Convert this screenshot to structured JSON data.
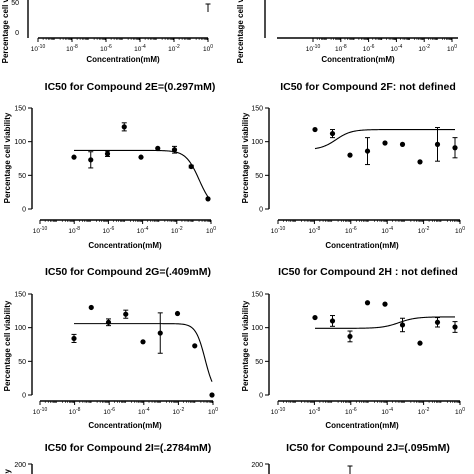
{
  "chart_data": [
    {
      "id": "2C",
      "type": "scatter",
      "title": "",
      "xlabel": "Concentration(mM)",
      "ylabel": "Percentage cell viability",
      "x_scale": "log10",
      "xlim": [
        1e-10,
        1
      ],
      "x_ticks": [
        -10,
        -8,
        -6,
        -4,
        -2,
        0
      ],
      "y_ticks": [
        "50",
        "0"
      ],
      "points": [
        {
          "x": 1,
          "y": 35,
          "err": 8
        }
      ]
    },
    {
      "id": "2D",
      "type": "scatter",
      "title": "",
      "xlabel": "Concentration(mM)",
      "ylabel": "Percentage cell viability",
      "x_scale": "log10",
      "xlim": [
        1e-10,
        1
      ],
      "x_ticks": [
        -10,
        -8,
        -6,
        -4,
        -2,
        0
      ],
      "y_ticks": [],
      "points": []
    },
    {
      "id": "2E",
      "type": "scatter",
      "title": "IC50 for Compound 2E=(0.297mM)",
      "xlabel": "Concentration(mM)",
      "ylabel": "Percentage cell viability",
      "x_scale": "log10",
      "xlim": [
        1e-10,
        1
      ],
      "ylim": [
        0,
        150
      ],
      "x_ticks": [
        -10,
        -8,
        -6,
        -4,
        -2,
        0
      ],
      "y_ticks": [
        "0",
        "50",
        "100",
        "150"
      ],
      "points": [
        {
          "x": -8,
          "y": 77
        },
        {
          "x": -7,
          "y": 73,
          "err": 12
        },
        {
          "x": -6,
          "y": 82,
          "err": 4
        },
        {
          "x": -5,
          "y": 122,
          "err": 6
        },
        {
          "x": -4,
          "y": 77
        },
        {
          "x": -3,
          "y": 90
        },
        {
          "x": -2,
          "y": 88,
          "err": 5
        },
        {
          "x": -1,
          "y": 63,
          "err": 2
        },
        {
          "x": 0,
          "y": 15
        }
      ],
      "curve": {
        "top": 87,
        "bottom": 0,
        "log_ic50": -0.53,
        "hill": 1.1
      }
    },
    {
      "id": "2F",
      "type": "scatter",
      "title": "IC50 for Compound 2F: not defined",
      "xlabel": "Concentration(mM)",
      "ylabel": "Percentage cell viability",
      "x_scale": "log10",
      "xlim": [
        1e-10,
        1
      ],
      "ylim": [
        0,
        150
      ],
      "x_ticks": [
        -10,
        -8,
        -6,
        -4,
        -2,
        0
      ],
      "y_ticks": [
        "0",
        "50",
        "100",
        "150"
      ],
      "points": [
        {
          "x": -8,
          "y": 118
        },
        {
          "x": -7,
          "y": 112,
          "err": 6
        },
        {
          "x": -6,
          "y": 80
        },
        {
          "x": -5,
          "y": 86,
          "err": 20
        },
        {
          "x": -4,
          "y": 98
        },
        {
          "x": -3,
          "y": 96
        },
        {
          "x": -2,
          "y": 70
        },
        {
          "x": -1,
          "y": 96,
          "err": 25
        },
        {
          "x": 0,
          "y": 91,
          "err": 15
        }
      ],
      "curve": {
        "top": 118,
        "bottom": 88,
        "log_ic50": -6.8,
        "hill": -1
      }
    },
    {
      "id": "2G",
      "type": "scatter",
      "title": "IC50 for Compound 2G=(.409mM)",
      "xlabel": "Concentration(mM)",
      "ylabel": "Percentage cell viability",
      "x_scale": "log10",
      "xlim": [
        1e-10,
        1
      ],
      "ylim": [
        0,
        150
      ],
      "x_ticks": [
        -10,
        -8,
        -6,
        -4,
        -2,
        0
      ],
      "y_ticks": [
        "0",
        "50",
        "100",
        "150"
      ],
      "points": [
        {
          "x": -8,
          "y": 84,
          "err": 6
        },
        {
          "x": -7,
          "y": 130
        },
        {
          "x": -6,
          "y": 108,
          "err": 5
        },
        {
          "x": -5,
          "y": 120,
          "err": 6
        },
        {
          "x": -4,
          "y": 79
        },
        {
          "x": -3,
          "y": 92,
          "err": 30
        },
        {
          "x": -2,
          "y": 121
        },
        {
          "x": -1,
          "y": 73
        },
        {
          "x": 0,
          "y": 0
        }
      ],
      "curve": {
        "top": 106,
        "bottom": 0,
        "log_ic50": -0.4,
        "hill": 1.6
      }
    },
    {
      "id": "2H",
      "type": "scatter",
      "title": "IC50 for Compound 2H : not defined",
      "xlabel": "Concentration(mM)",
      "ylabel": "Percentage cell viability",
      "x_scale": "log10",
      "xlim": [
        1e-10,
        1
      ],
      "ylim": [
        0,
        150
      ],
      "x_ticks": [
        -10,
        -8,
        -6,
        -4,
        -2,
        0
      ],
      "y_ticks": [
        "0",
        "50",
        "100",
        "150"
      ],
      "points": [
        {
          "x": -8,
          "y": 115
        },
        {
          "x": -7,
          "y": 110,
          "err": 8
        },
        {
          "x": -6,
          "y": 87,
          "err": 8
        },
        {
          "x": -5,
          "y": 137
        },
        {
          "x": -4,
          "y": 135
        },
        {
          "x": -3,
          "y": 104,
          "err": 10
        },
        {
          "x": -2,
          "y": 77
        },
        {
          "x": -1,
          "y": 108,
          "err": 7
        },
        {
          "x": 0,
          "y": 101,
          "err": 8
        }
      ],
      "curve": {
        "top": 116,
        "bottom": 99,
        "log_ic50": -3.2,
        "hill": -0.9
      }
    },
    {
      "id": "2I",
      "type": "scatter",
      "title": "IC50 for Compound 2I=(.2784mM)",
      "xlabel": "",
      "ylabel": "",
      "y_ticks": [
        "200"
      ],
      "points": []
    },
    {
      "id": "2J",
      "type": "scatter",
      "title": "IC50 for Compound 2J=(.095mM)",
      "xlabel": "",
      "ylabel": "",
      "y_ticks": [
        "200"
      ],
      "points": []
    }
  ]
}
